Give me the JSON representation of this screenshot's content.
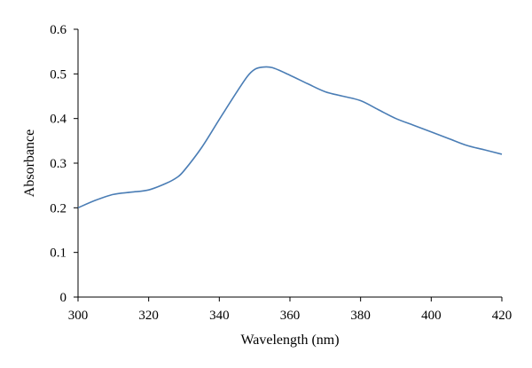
{
  "chart_data": {
    "type": "line",
    "xlabel": "Wavelength (nm)",
    "ylabel": "Absorbance",
    "xlim": [
      300,
      420
    ],
    "ylim": [
      0,
      0.6
    ],
    "x_ticks": [
      300,
      320,
      340,
      360,
      380,
      400,
      420
    ],
    "y_ticks": [
      0,
      0.1,
      0.2,
      0.3,
      0.4,
      0.5,
      0.6
    ],
    "x_tick_labels": [
      "300",
      "320",
      "340",
      "360",
      "380",
      "400",
      "420"
    ],
    "y_tick_labels": [
      "0",
      "0.1",
      "0.2",
      "0.3",
      "0.4",
      "0.5",
      "0.6"
    ],
    "grid": false,
    "legend": "none",
    "line_color": "#4a7db5",
    "series": [
      {
        "x": [
          300,
          305,
          310,
          315,
          320,
          325,
          328,
          330,
          335,
          340,
          345,
          348,
          350,
          352,
          355,
          360,
          365,
          370,
          375,
          380,
          385,
          390,
          395,
          400,
          405,
          410,
          415,
          420
        ],
        "values": [
          0.2,
          0.217,
          0.23,
          0.235,
          0.24,
          0.255,
          0.268,
          0.283,
          0.335,
          0.398,
          0.46,
          0.495,
          0.51,
          0.515,
          0.514,
          0.497,
          0.478,
          0.46,
          0.45,
          0.44,
          0.42,
          0.4,
          0.385,
          0.37,
          0.355,
          0.34,
          0.33,
          0.32
        ]
      }
    ]
  }
}
